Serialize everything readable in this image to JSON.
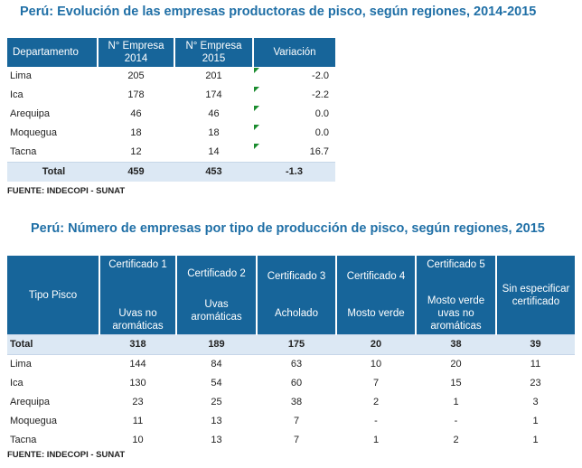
{
  "table1": {
    "title": "Perú: Evolución de las empresas productoras de pisco, según regiones, 2014-2015",
    "headers": [
      "Departamento",
      "N° Empresa 2014",
      "N° Empresa 2015",
      "Variación"
    ],
    "header_lines": [
      [
        "Departamento"
      ],
      [
        "N° Empresa",
        "2014"
      ],
      [
        "N° Empresa",
        "2015"
      ],
      [
        "Variación"
      ]
    ],
    "rows": [
      {
        "dep": "Lima",
        "y2014": "205",
        "y2015": "201",
        "var": "-2.0"
      },
      {
        "dep": "Ica",
        "y2014": "178",
        "y2015": "174",
        "var": "-2.2"
      },
      {
        "dep": "Arequipa",
        "y2014": "46",
        "y2015": "46",
        "var": "0.0"
      },
      {
        "dep": "Moquegua",
        "y2014": "18",
        "y2015": "18",
        "var": "0.0"
      },
      {
        "dep": "Tacna",
        "y2014": "12",
        "y2015": "14",
        "var": "16.7"
      }
    ],
    "total": {
      "dep": "Total",
      "y2014": "459",
      "y2015": "453",
      "var": "-1.3"
    },
    "source": "FUENTE: INDECOPI - SUNAT",
    "tick_color": "#1a8c2e"
  },
  "table2": {
    "title": "Perú: Número de empresas por tipo de producción de pisco, según regiones, 2015",
    "headers": [
      {
        "top": "Tipo Pisco",
        "bottom": ""
      },
      {
        "top": "Certificado 1",
        "bottom": "Uvas no aromáticas"
      },
      {
        "top": "Certificado 2",
        "bottom": "Uvas aromáticas"
      },
      {
        "top": "Certificado 3",
        "bottom": "Acholado"
      },
      {
        "top": "Certificado 4",
        "bottom": "Mosto verde"
      },
      {
        "top": "Certificado 5",
        "bottom": "Mosto verde uvas no aromáticas"
      },
      {
        "top": "Sin especificar certificado",
        "bottom": ""
      }
    ],
    "total": {
      "dep": "Total",
      "values": [
        "318",
        "189",
        "175",
        "20",
        "38",
        "39"
      ]
    },
    "rows": [
      {
        "dep": "Lima",
        "values": [
          "144",
          "84",
          "63",
          "10",
          "20",
          "11"
        ]
      },
      {
        "dep": "Ica",
        "values": [
          "130",
          "54",
          "60",
          "7",
          "15",
          "23"
        ]
      },
      {
        "dep": "Arequipa",
        "values": [
          "23",
          "25",
          "38",
          "2",
          "1",
          "3"
        ]
      },
      {
        "dep": "Moquegua",
        "values": [
          "11",
          "13",
          "7",
          "-",
          "-",
          "1"
        ]
      },
      {
        "dep": "Tacna",
        "values": [
          "10",
          "13",
          "7",
          "1",
          "2",
          "1"
        ]
      }
    ],
    "source": "FUENTE: INDECOPI - SUNAT"
  },
  "colors": {
    "header_bg": "#17659a",
    "title": "#1f6fa6",
    "total_bg": "#dce8f4"
  }
}
